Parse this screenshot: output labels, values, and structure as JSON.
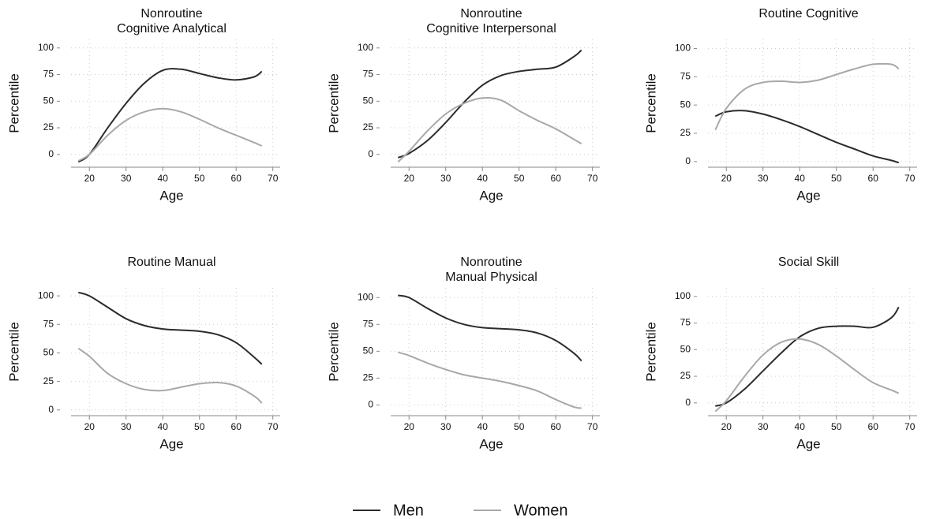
{
  "chart_data": [
    {
      "type": "line",
      "title": [
        "Nonroutine",
        "Cognitive Analytical"
      ],
      "xlabel": "Age",
      "ylabel": "Percentile",
      "x": [
        17,
        20,
        25,
        30,
        35,
        40,
        45,
        50,
        55,
        60,
        65,
        67
      ],
      "series": [
        {
          "name": "Men",
          "color": "#2b2b2b",
          "values": [
            -7,
            0,
            25,
            48,
            67,
            79,
            80,
            76,
            72,
            70,
            73,
            78
          ]
        },
        {
          "name": "Women",
          "color": "#a8a8a8",
          "values": [
            -6,
            0,
            18,
            32,
            40,
            43,
            40,
            33,
            25,
            18,
            11,
            8
          ]
        }
      ],
      "xlim": [
        15,
        72
      ],
      "ylim": [
        -12,
        108
      ],
      "xticks": [
        20,
        30,
        40,
        50,
        60,
        70
      ],
      "yticks": [
        0,
        25,
        50,
        75,
        100
      ],
      "grid": true
    },
    {
      "type": "line",
      "title": [
        "Nonroutine",
        "Cognitive Interpersonal"
      ],
      "xlabel": "Age",
      "ylabel": "Percentile",
      "x": [
        17,
        20,
        25,
        30,
        35,
        40,
        45,
        50,
        55,
        60,
        65,
        67
      ],
      "series": [
        {
          "name": "Men",
          "color": "#2b2b2b",
          "values": [
            -3,
            1,
            13,
            30,
            49,
            65,
            74,
            78,
            80,
            82,
            92,
            98
          ]
        },
        {
          "name": "Women",
          "color": "#a8a8a8",
          "values": [
            -7,
            3,
            22,
            38,
            48,
            53,
            51,
            41,
            32,
            24,
            14,
            10
          ]
        }
      ],
      "xlim": [
        15,
        72
      ],
      "ylim": [
        -12,
        108
      ],
      "xticks": [
        20,
        30,
        40,
        50,
        60,
        70
      ],
      "yticks": [
        0,
        25,
        50,
        75,
        100
      ],
      "grid": true
    },
    {
      "type": "line",
      "title": [
        "Routine Cognitive"
      ],
      "xlabel": "Age",
      "ylabel": "Percentile",
      "x": [
        17,
        20,
        25,
        30,
        35,
        40,
        45,
        50,
        55,
        60,
        65,
        67
      ],
      "series": [
        {
          "name": "Men",
          "color": "#2b2b2b",
          "values": [
            40,
            44,
            45,
            42,
            37,
            31,
            24,
            17,
            11,
            5,
            1,
            -1
          ]
        },
        {
          "name": "Women",
          "color": "#a8a8a8",
          "values": [
            28,
            47,
            64,
            70,
            71,
            70,
            72,
            77,
            82,
            86,
            86,
            82
          ]
        }
      ],
      "xlim": [
        15,
        72
      ],
      "ylim": [
        -5,
        108
      ],
      "xticks": [
        20,
        30,
        40,
        50,
        60,
        70
      ],
      "yticks": [
        0,
        25,
        50,
        75,
        100
      ],
      "grid": true
    },
    {
      "type": "line",
      "title": [
        "Routine Manual"
      ],
      "xlabel": "Age",
      "ylabel": "Percentile",
      "x": [
        17,
        20,
        25,
        30,
        35,
        40,
        45,
        50,
        55,
        60,
        65,
        67
      ],
      "series": [
        {
          "name": "Men",
          "color": "#2b2b2b",
          "values": [
            103,
            100,
            90,
            80,
            74,
            71,
            70,
            69,
            66,
            59,
            46,
            40
          ]
        },
        {
          "name": "Women",
          "color": "#a8a8a8",
          "values": [
            54,
            47,
            32,
            23,
            18,
            17,
            20,
            23,
            24,
            21,
            12,
            6
          ]
        }
      ],
      "xlim": [
        15,
        72
      ],
      "ylim": [
        -5,
        107
      ],
      "xticks": [
        20,
        30,
        40,
        50,
        60,
        70
      ],
      "yticks": [
        0,
        25,
        50,
        75,
        100
      ],
      "grid": true
    },
    {
      "type": "line",
      "title": [
        "Nonroutine",
        "Manual Physical"
      ],
      "xlabel": "Age",
      "ylabel": "Percentile",
      "x": [
        17,
        20,
        25,
        30,
        35,
        40,
        45,
        50,
        55,
        60,
        65,
        67
      ],
      "series": [
        {
          "name": "Men",
          "color": "#2b2b2b",
          "values": [
            102,
            100,
            90,
            81,
            75,
            72,
            71,
            70,
            67,
            60,
            48,
            41
          ]
        },
        {
          "name": "Women",
          "color": "#a8a8a8",
          "values": [
            49,
            46,
            39,
            33,
            28,
            25,
            22,
            18,
            13,
            5,
            -2,
            -3
          ]
        }
      ],
      "xlim": [
        15,
        72
      ],
      "ylim": [
        -10,
        109
      ],
      "xticks": [
        20,
        30,
        40,
        50,
        60,
        70
      ],
      "yticks": [
        0,
        25,
        50,
        75,
        100
      ],
      "grid": true
    },
    {
      "type": "line",
      "title": [
        "Social Skill"
      ],
      "xlabel": "Age",
      "ylabel": "Percentile",
      "x": [
        17,
        20,
        25,
        30,
        35,
        40,
        45,
        50,
        55,
        60,
        65,
        67
      ],
      "series": [
        {
          "name": "Men",
          "color": "#2b2b2b",
          "values": [
            -3,
            0,
            13,
            30,
            47,
            62,
            70,
            72,
            72,
            71,
            80,
            90
          ]
        },
        {
          "name": "Women",
          "color": "#a8a8a8",
          "values": [
            -8,
            2,
            25,
            45,
            57,
            60,
            55,
            44,
            31,
            19,
            12,
            9
          ]
        }
      ],
      "xlim": [
        15,
        72
      ],
      "ylim": [
        -12,
        108
      ],
      "xticks": [
        20,
        30,
        40,
        50,
        60,
        70
      ],
      "yticks": [
        0,
        25,
        50,
        75,
        100
      ],
      "grid": true
    }
  ]
}
